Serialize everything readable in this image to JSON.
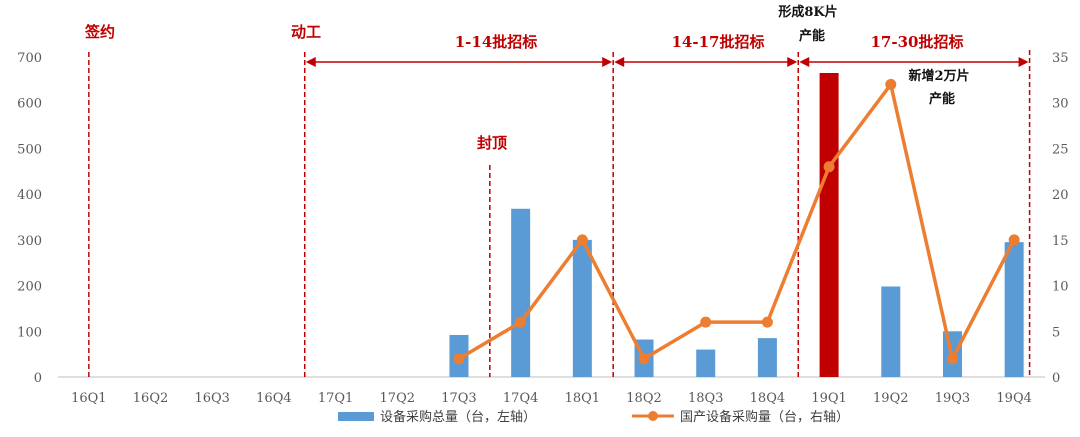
{
  "chart_data": {
    "type": "bar",
    "categories": [
      "16Q1",
      "16Q2",
      "16Q3",
      "16Q4",
      "17Q1",
      "17Q2",
      "17Q3",
      "17Q4",
      "18Q1",
      "18Q2",
      "18Q3",
      "18Q4",
      "19Q1",
      "19Q2",
      "19Q3",
      "19Q4"
    ],
    "series": [
      {
        "name": "设备采购总量（台，左轴）",
        "type": "bar",
        "axis": "left",
        "color": "#5b9bd5",
        "highlight_color": "#c00000",
        "highlight_index": 12,
        "values": [
          null,
          null,
          null,
          null,
          null,
          null,
          92,
          368,
          300,
          82,
          60,
          85,
          665,
          198,
          100,
          295
        ]
      },
      {
        "name": "国产设备采购量（台，右轴）",
        "type": "line",
        "axis": "right",
        "color": "#ed7d31",
        "values": [
          null,
          null,
          null,
          null,
          null,
          null,
          2,
          6,
          15,
          2,
          6,
          6,
          23,
          32,
          2,
          15
        ]
      }
    ],
    "ylim_left": [
      0,
      700
    ],
    "yticks_left": [
      "0",
      "100",
      "200",
      "300",
      "400",
      "500",
      "600",
      "700"
    ],
    "ylim_right": [
      0,
      35
    ],
    "yticks_right": [
      "0",
      "5",
      "10",
      "15",
      "20",
      "25",
      "30",
      "35"
    ],
    "grid": false,
    "legend_position": "bottom",
    "annotations": {
      "sign": "签约",
      "start": "动工",
      "topping": "封顶",
      "phase1": "1-14批招标",
      "phase2": "14-17批招标",
      "phase3": "17-30批招标",
      "cap1_line1": "形成8K片",
      "cap1_line2": "产能",
      "cap2_line1": "新增2万片",
      "cap2_line2": "产能"
    }
  }
}
